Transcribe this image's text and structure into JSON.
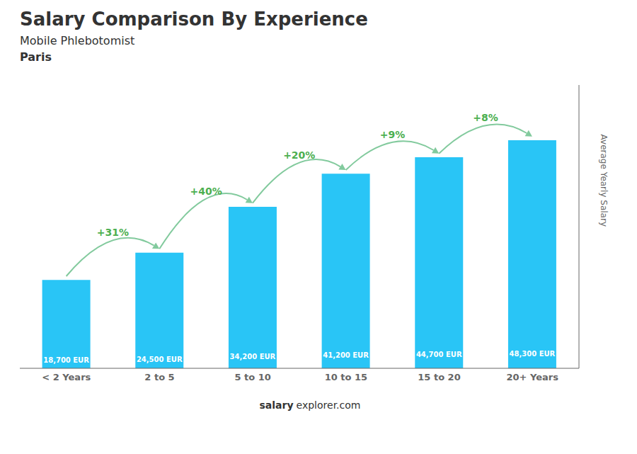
{
  "chart_data": {
    "type": "bar",
    "title": "Salary Comparison By Experience",
    "subtitle": "Mobile Phlebotomist",
    "categories": [
      "< 2 Years",
      "2 to 5",
      "5 to 10",
      "10 to 15",
      "15 to 20",
      "20+ Years"
    ],
    "values": [
      18700,
      24500,
      34200,
      41200,
      44700,
      48300
    ],
    "value_labels": [
      "18,700 EUR",
      "24,500 EUR",
      "34,200 EUR",
      "41,200 EUR",
      "44,700 EUR",
      "48,300 EUR"
    ],
    "data_labels": true,
    "color": "#29c5f6",
    "y_label": "Average Yearly Salary",
    "ylim": [
      0,
      60000
    ],
    "tick_labels": "x",
    "grid": false,
    "annotations": [
      {
        "text": "Paris"
      },
      {
        "text": "+31%",
        "between": [
          "< 2 Years",
          "2 to 5"
        ]
      },
      {
        "text": "+40%",
        "between": [
          "2 to 5",
          "5 to 10"
        ]
      },
      {
        "text": "+20%",
        "between": [
          "5 to 10",
          "10 to 15"
        ]
      },
      {
        "text": "+9%",
        "between": [
          "10 to 15",
          "15 to 20"
        ]
      },
      {
        "text": "+8%",
        "between": [
          "15 to 20",
          "20+ Years"
        ]
      },
      {
        "text": "salary"
      },
      {
        "text": "explorer.com"
      }
    ]
  }
}
